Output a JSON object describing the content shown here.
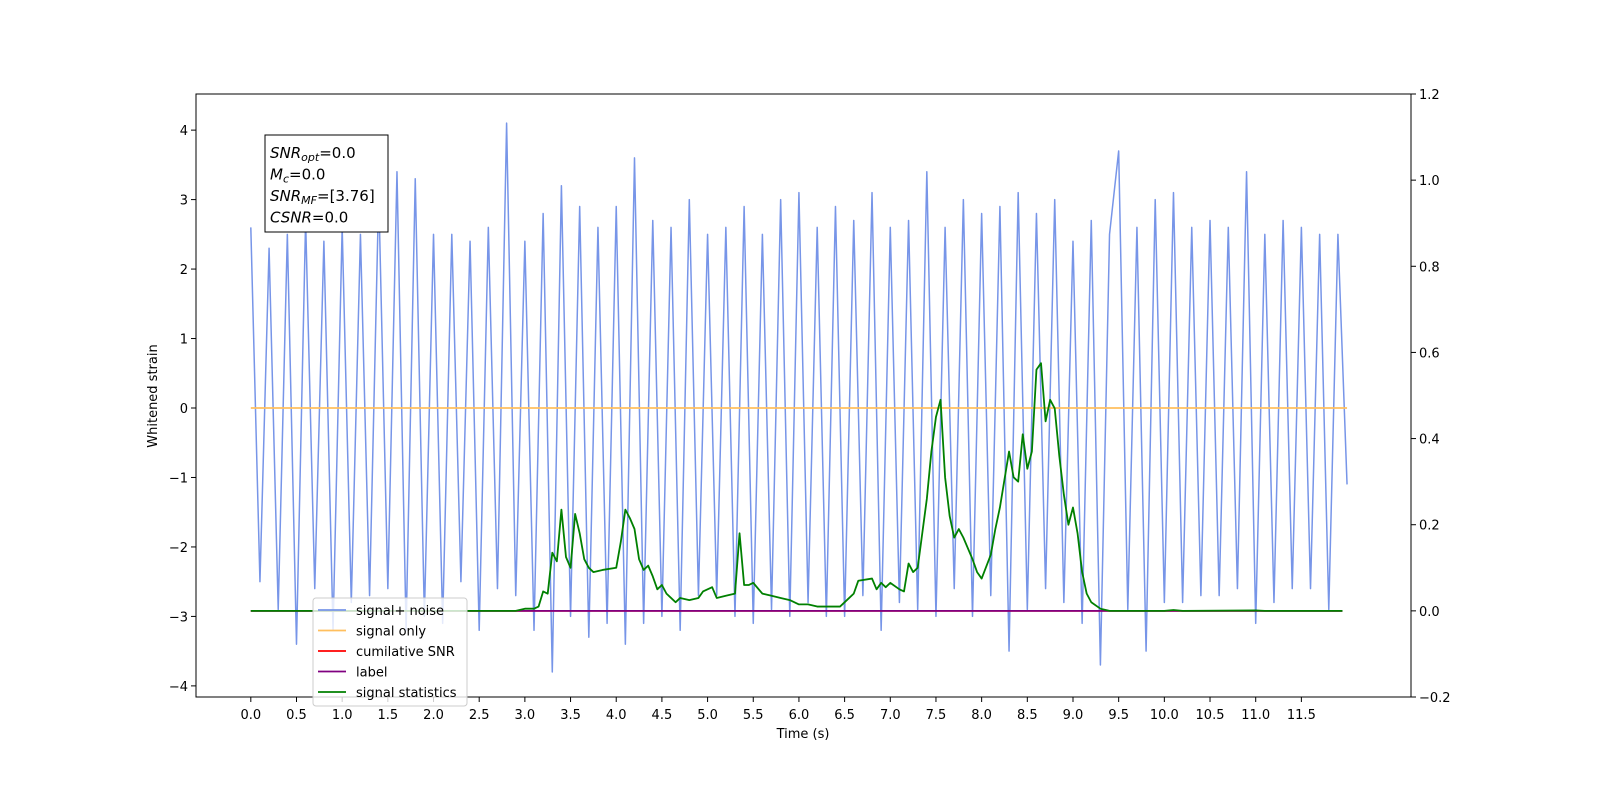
{
  "chart_data": {
    "type": "line",
    "x_label": "Time (s)",
    "y_label": "Whitened strain",
    "xlim": [
      -0.6,
      12.7
    ],
    "ylim": [
      -4.16,
      4.52
    ],
    "y2lim": [
      -0.2,
      1.2
    ],
    "xticks": [
      {
        "value": 0,
        "label": "0.0"
      },
      0.5,
      {
        "value": 1,
        "label": "1.0"
      },
      1.5,
      {
        "value": 2,
        "label": "2.0"
      },
      2.5,
      {
        "value": 3,
        "label": "3.0"
      },
      3.5,
      {
        "value": 4,
        "label": "4.0"
      },
      4.5,
      {
        "value": 5,
        "label": "5.0"
      },
      5.5,
      {
        "value": 6,
        "label": "6.0"
      },
      6.5,
      {
        "value": 7,
        "label": "7.0"
      },
      7.5,
      {
        "value": 8,
        "label": "8.0"
      },
      8.5,
      {
        "value": 9,
        "label": "9.0"
      },
      9.5,
      {
        "value": 10,
        "label": "10.0"
      },
      10.5,
      {
        "value": 11,
        "label": "11.0"
      },
      11.5
    ],
    "yticks": [
      {
        "value": -4,
        "label": "−4"
      },
      {
        "value": -3,
        "label": "−3"
      },
      {
        "value": -2,
        "label": "−2"
      },
      {
        "value": -1,
        "label": "−1"
      },
      0,
      1,
      2,
      3,
      4
    ],
    "y2ticks": [
      {
        "value": -0.2,
        "label": "−0.2"
      },
      {
        "value": 0,
        "label": "0.0"
      },
      0.2,
      0.4,
      0.6,
      0.8,
      {
        "value": 1,
        "label": "1.0"
      },
      1.2
    ],
    "legend": "lower left",
    "annotation": [
      {
        "text": "SNR",
        "sub": "opt",
        "rest": "=0.0"
      },
      {
        "text": "M",
        "sub": "c",
        "rest": "=0.0"
      },
      {
        "text": "SNR",
        "sub": "MF",
        "rest": "=[3.76]"
      },
      {
        "text": "CSNR",
        "rest": "=0.0"
      }
    ],
    "series": [
      {
        "name": "signal+ noise",
        "color": "#7795e8",
        "x": [
          0,
          0.1,
          0.2,
          0.3,
          0.4,
          0.5,
          0.6,
          0.7,
          0.8,
          0.9,
          1,
          1.1,
          1.2,
          1.3,
          1.4,
          1.5,
          1.6,
          1.7,
          1.8,
          1.9,
          2,
          2.1,
          2.2,
          2.3,
          2.4,
          2.5,
          2.6,
          2.7,
          2.8,
          2.9,
          3,
          3.1,
          3.2,
          3.3,
          3.4,
          3.5,
          3.6,
          3.7,
          3.8,
          3.9,
          4,
          4.1,
          4.2,
          4.3,
          4.4,
          4.5,
          4.6,
          4.7,
          4.8,
          4.9,
          5,
          5.1,
          5.2,
          5.3,
          5.4,
          5.5,
          5.6,
          5.7,
          5.8,
          5.9,
          6,
          6.1,
          6.2,
          6.3,
          6.4,
          6.5,
          6.6,
          6.7,
          6.8,
          6.9,
          7,
          7.1,
          7.2,
          7.3,
          7.4,
          7.5,
          7.6,
          7.7,
          7.8,
          7.9,
          8,
          8.1,
          8.2,
          8.3,
          8.4,
          8.5,
          8.6,
          8.7,
          8.8,
          8.9,
          9,
          9.1,
          9.2,
          9.3,
          9.4,
          9.5,
          9.6,
          9.7,
          9.8,
          9.9,
          10,
          10.1,
          10.2,
          10.3,
          10.4,
          10.5,
          10.6,
          10.7,
          10.8,
          10.9,
          11,
          11.1,
          11.2,
          11.3,
          11.4,
          11.5,
          11.6,
          11.7,
          11.8,
          11.9,
          12
        ],
        "values": [
          2.6,
          -2.5,
          2.3,
          -2.9,
          2.5,
          -3.4,
          2.7,
          -2.6,
          2.4,
          -3.2,
          2.6,
          -2.8,
          2.5,
          -2.7,
          3.1,
          -2.6,
          3.4,
          -3.2,
          3.3,
          -3.0,
          2.5,
          -3.1,
          2.5,
          -2.5,
          2.4,
          -3.2,
          2.6,
          -2.6,
          4.1,
          -2.7,
          2.4,
          -3.2,
          2.8,
          -3.8,
          3.2,
          -3.0,
          2.9,
          -3.3,
          2.6,
          -3.1,
          2.9,
          -3.4,
          3.6,
          -3.1,
          2.7,
          -3.0,
          2.6,
          -3.2,
          3.0,
          -2.7,
          2.5,
          -2.7,
          2.6,
          -3.0,
          2.9,
          -3.1,
          2.5,
          -2.9,
          3.0,
          -3.0,
          3.1,
          -2.8,
          2.6,
          -3.0,
          2.9,
          -3.0,
          2.7,
          -2.7,
          3.1,
          -3.2,
          2.6,
          -2.8,
          2.7,
          -2.9,
          3.4,
          -3.0,
          2.6,
          -2.6,
          3.0,
          -3.0,
          2.8,
          -2.7,
          2.9,
          -3.5,
          3.1,
          -2.9,
          2.8,
          -2.6,
          3.0,
          -2.8,
          2.4,
          -3.1,
          2.7,
          -3.7,
          2.5,
          3.7,
          -2.9,
          2.6,
          -3.5,
          3.0,
          -2.8,
          3.1,
          -2.8,
          2.6,
          -2.7,
          2.7,
          -2.7,
          2.6,
          -2.6,
          3.4,
          -3.1,
          2.5,
          -2.8,
          2.7,
          -2.6,
          2.6,
          -2.6,
          2.5,
          -2.9,
          2.5,
          -1.1
        ]
      },
      {
        "name": "signal only",
        "color": "#ffbf5e",
        "x": [
          0,
          12
        ],
        "values": [
          0,
          0
        ]
      },
      {
        "name": "cumilative SNR",
        "color": "#ff0000",
        "axis": "y2",
        "x": [
          0,
          11.95
        ],
        "values": [
          0,
          0
        ]
      },
      {
        "name": "label",
        "color": "#800080",
        "axis": "y2",
        "x": [
          0,
          11.95
        ],
        "values": [
          0,
          0
        ]
      },
      {
        "name": "signal statistics",
        "color": "#008000",
        "axis": "y2",
        "x": [
          0,
          2.9,
          3.0,
          3.1,
          3.15,
          3.2,
          3.25,
          3.3,
          3.35,
          3.4,
          3.45,
          3.5,
          3.55,
          3.6,
          3.65,
          3.7,
          3.75,
          3.85,
          4.0,
          4.05,
          4.1,
          4.15,
          4.2,
          4.25,
          4.3,
          4.35,
          4.4,
          4.45,
          4.5,
          4.55,
          4.6,
          4.65,
          4.7,
          4.8,
          4.9,
          4.95,
          5.05,
          5.1,
          5.2,
          5.3,
          5.35,
          5.4,
          5.45,
          5.5,
          5.6,
          5.7,
          5.8,
          5.9,
          6.0,
          6.1,
          6.2,
          6.3,
          6.45,
          6.55,
          6.6,
          6.65,
          6.8,
          6.85,
          6.9,
          6.95,
          7.0,
          7.1,
          7.15,
          7.2,
          7.25,
          7.3,
          7.4,
          7.45,
          7.5,
          7.55,
          7.6,
          7.65,
          7.7,
          7.75,
          7.8,
          7.9,
          7.95,
          8.0,
          8.1,
          8.15,
          8.2,
          8.3,
          8.35,
          8.4,
          8.45,
          8.5,
          8.55,
          8.6,
          8.65,
          8.7,
          8.75,
          8.8,
          8.85,
          8.9,
          8.95,
          9.0,
          9.05,
          9.1,
          9.15,
          9.2,
          9.3,
          9.4,
          10.0,
          10.1,
          10.2,
          11.0,
          11.1,
          11.95
        ],
        "values": [
          0,
          0,
          0.005,
          0.005,
          0.01,
          0.045,
          0.04,
          0.135,
          0.115,
          0.235,
          0.125,
          0.1,
          0.225,
          0.18,
          0.12,
          0.1,
          0.09,
          0.095,
          0.1,
          0.16,
          0.235,
          0.215,
          0.19,
          0.12,
          0.095,
          0.105,
          0.08,
          0.05,
          0.06,
          0.04,
          0.03,
          0.02,
          0.03,
          0.025,
          0.03,
          0.045,
          0.055,
          0.03,
          0.035,
          0.04,
          0.18,
          0.06,
          0.06,
          0.065,
          0.04,
          0.035,
          0.03,
          0.025,
          0.015,
          0.015,
          0.01,
          0.01,
          0.01,
          0.03,
          0.04,
          0.07,
          0.075,
          0.05,
          0.065,
          0.055,
          0.065,
          0.05,
          0.045,
          0.11,
          0.09,
          0.1,
          0.26,
          0.37,
          0.45,
          0.49,
          0.31,
          0.22,
          0.17,
          0.19,
          0.17,
          0.12,
          0.09,
          0.075,
          0.13,
          0.19,
          0.24,
          0.37,
          0.31,
          0.3,
          0.41,
          0.33,
          0.37,
          0.56,
          0.575,
          0.44,
          0.49,
          0.47,
          0.36,
          0.27,
          0.2,
          0.24,
          0.18,
          0.09,
          0.04,
          0.02,
          0.005,
          0,
          0,
          0.002,
          0,
          0.001,
          0,
          0
        ]
      }
    ]
  }
}
